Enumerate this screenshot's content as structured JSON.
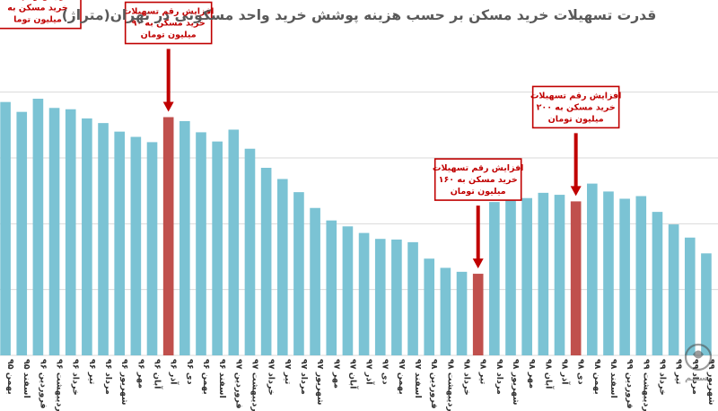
{
  "chart_data": {
    "type": "bar",
    "title": "قدرت تسهیلات خرید مسکن بر حسب هزینه پوشش خرید واحد مسکونی در تهران(متراژ)",
    "xlabel": "",
    "ylabel": "",
    "ylim": [
      0,
      48
    ],
    "grid": true,
    "legend": "none",
    "colors": {
      "normal": "#7bc3d4",
      "highlight": "#c0504d",
      "annotation": "#c00000",
      "title": "#595959",
      "grid": "#d9d9d9"
    },
    "categories": [
      "بهمن ۹۵",
      "اسفند ۹۵",
      "فروردین ۹۶",
      "اردیبهشت ۹۶",
      "خرداد ۹۶",
      "تیر ۹۶",
      "مرداد ۹۶",
      "شهریور ۹۶",
      "مهر ۹۶",
      "آبان ۹۶",
      "آذر ۹۶",
      "دی ۹۶",
      "بهمن ۹۶",
      "اسفند ۹۶",
      "فروردین ۹۷",
      "اردیبهشت ۹۷",
      "خرداد ۹۷",
      "تیر ۹۷",
      "مرداد ۹۷",
      "شهریور ۹۷",
      "مهر ۹۷",
      "آبان ۹۷",
      "آذر ۹۷",
      "دی ۹۷",
      "بهمن ۹۷",
      "اسفند ۹۷",
      "فروردین ۹۸",
      "اردیبهشت ۹۸",
      "خرداد ۹۸",
      "تیر ۹۸",
      "مرداد ۹۸",
      "شهریور ۹۸",
      "مهر ۹۸",
      "آبان ۹۸",
      "آذر ۹۸",
      "دی ۹۸",
      "بهمن ۹۸",
      "اسفند ۹۸",
      "فروردین ۹۹",
      "اردیبهشت ۹۹",
      "خرداد ۹۹",
      "تیر ۹۹",
      "مرداد ۹۹",
      "شهریور ۹۹"
    ],
    "values": [
      38.5,
      37.0,
      39.0,
      37.6,
      37.4,
      36.0,
      35.3,
      34.0,
      33.2,
      32.4,
      36.2,
      35.6,
      33.9,
      32.5,
      34.3,
      31.4,
      28.5,
      26.8,
      24.8,
      22.4,
      20.5,
      19.6,
      18.6,
      17.7,
      17.6,
      17.2,
      14.7,
      13.3,
      12.7,
      12.4,
      23.3,
      24.4,
      23.9,
      24.7,
      24.4,
      23.4,
      26.1,
      24.9,
      23.8,
      24.2,
      21.8,
      19.9,
      17.9,
      15.5
    ],
    "highlighted_indices": [
      10,
      29,
      35
    ],
    "annotations": [
      {
        "index": 0,
        "lines": [
          "افزایش رقم تسه",
          "خرید مسکن به",
          "میلیون توما"
        ]
      },
      {
        "index": 10,
        "lines": [
          "افزایش رقم تسهیلات",
          "خرید مسکن به ۹۰",
          "میلیون تومان"
        ]
      },
      {
        "index": 29,
        "lines": [
          "افزایش رقم تسهیلات",
          "خرید مسکن به ۱۶۰",
          "میلیون تومان"
        ]
      },
      {
        "index": 35,
        "lines": [
          "افزایش رقم تسهیلات",
          "خرید مسکن به ۲۰۰",
          "میلیون تومان"
        ]
      }
    ]
  },
  "watermark": {
    "label": "تسنیم",
    "icon": "agency-logo-icon"
  }
}
